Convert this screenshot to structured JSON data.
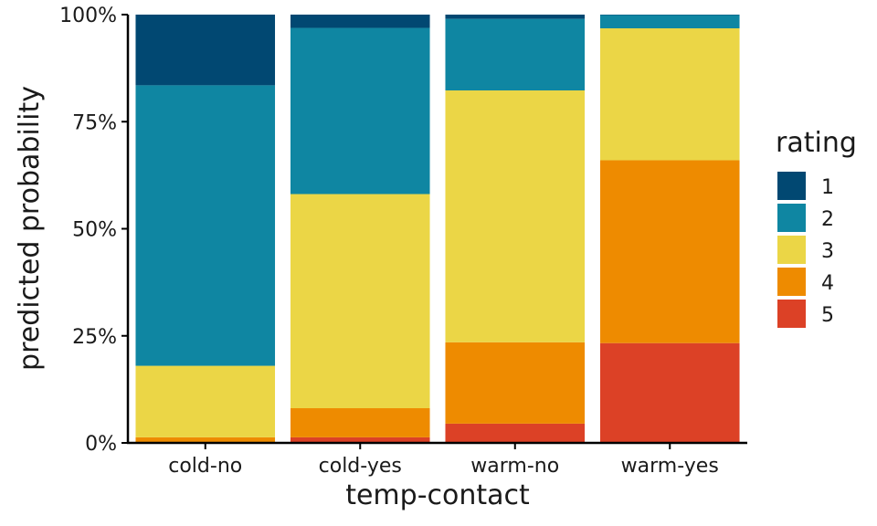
{
  "chart_data": {
    "type": "bar",
    "stacked": true,
    "normalized": true,
    "xlabel": "temp-contact",
    "ylabel": "predicted probability",
    "categories": [
      "cold-no",
      "cold-yes",
      "warm-no",
      "warm-yes"
    ],
    "ylim": [
      0,
      1
    ],
    "yticks": [
      0,
      0.25,
      0.5,
      0.75,
      1
    ],
    "ytick_labels": [
      "0%",
      "25%",
      "50%",
      "75%",
      "100%"
    ],
    "grid": false,
    "legend": {
      "title": "rating",
      "placement": "right"
    },
    "series": [
      {
        "name": "5",
        "color": "#DC4126",
        "values": [
          0.001,
          0.013,
          0.045,
          0.233
        ]
      },
      {
        "name": "4",
        "color": "#EE8B00",
        "values": [
          0.012,
          0.068,
          0.19,
          0.427
        ]
      },
      {
        "name": "3",
        "color": "#EBD646",
        "values": [
          0.167,
          0.5,
          0.588,
          0.308
        ]
      },
      {
        "name": "2",
        "color": "#0F86A2",
        "values": [
          0.655,
          0.388,
          0.167,
          0.031
        ]
      },
      {
        "name": "1",
        "color": "#014872",
        "values": [
          0.165,
          0.031,
          0.01,
          0.001
        ]
      }
    ]
  }
}
